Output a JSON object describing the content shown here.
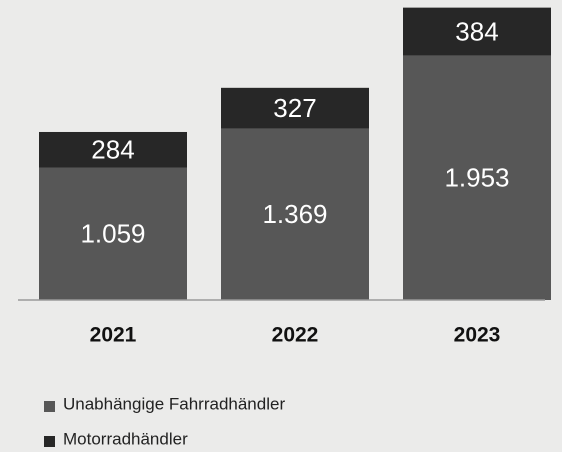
{
  "chart_data": {
    "type": "stacked_bar",
    "categories": [
      "2021",
      "2022",
      "2023"
    ],
    "series": [
      {
        "name": "Unabhängige Fahrradhändler",
        "color": "#575757",
        "values": [
          1059,
          1369,
          1953
        ],
        "value_labels": [
          "1.059",
          "1.369",
          "1.953"
        ]
      },
      {
        "name": "Motorradhändler",
        "color": "#272727",
        "values": [
          284,
          327,
          384
        ]
      }
    ],
    "ylim": [
      0,
      2350
    ]
  }
}
